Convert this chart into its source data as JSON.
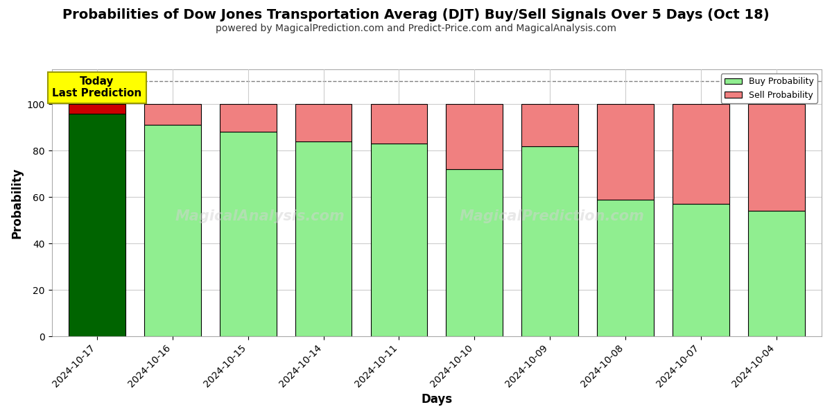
{
  "title": "Probabilities of Dow Jones Transportation Averag (DJT) Buy/Sell Signals Over 5 Days (Oct 18)",
  "subtitle": "powered by MagicalPrediction.com and Predict-Price.com and MagicalAnalysis.com",
  "xlabel": "Days",
  "ylabel": "Probability",
  "watermark_left": "MagicalAnalysis.com",
  "watermark_right": "MagicalPrediction.com",
  "dates": [
    "2024-10-17",
    "2024-10-16",
    "2024-10-15",
    "2024-10-14",
    "2024-10-11",
    "2024-10-10",
    "2024-10-09",
    "2024-10-08",
    "2024-10-07",
    "2024-10-04"
  ],
  "buy_values": [
    96,
    91,
    88,
    84,
    83,
    72,
    82,
    59,
    57,
    54
  ],
  "sell_values": [
    4,
    9,
    12,
    16,
    17,
    28,
    18,
    41,
    43,
    46
  ],
  "first_bar_buy_color": "#006400",
  "first_bar_sell_color": "#cc0000",
  "buy_color": "#90EE90",
  "sell_color": "#F08080",
  "bar_edge_color": "#000000",
  "ylim": [
    0,
    115
  ],
  "yticks": [
    0,
    20,
    40,
    60,
    80,
    100
  ],
  "dashed_line_y": 110,
  "legend_buy_label": "Buy Probability",
  "legend_sell_label": "Sell Probability",
  "annotation_text": "Today\nLast Prediction",
  "annotation_bg": "#FFFF00",
  "title_fontsize": 14,
  "subtitle_fontsize": 10,
  "label_fontsize": 12,
  "tick_fontsize": 10,
  "grid_color": "#cccccc",
  "background_color": "#ffffff"
}
